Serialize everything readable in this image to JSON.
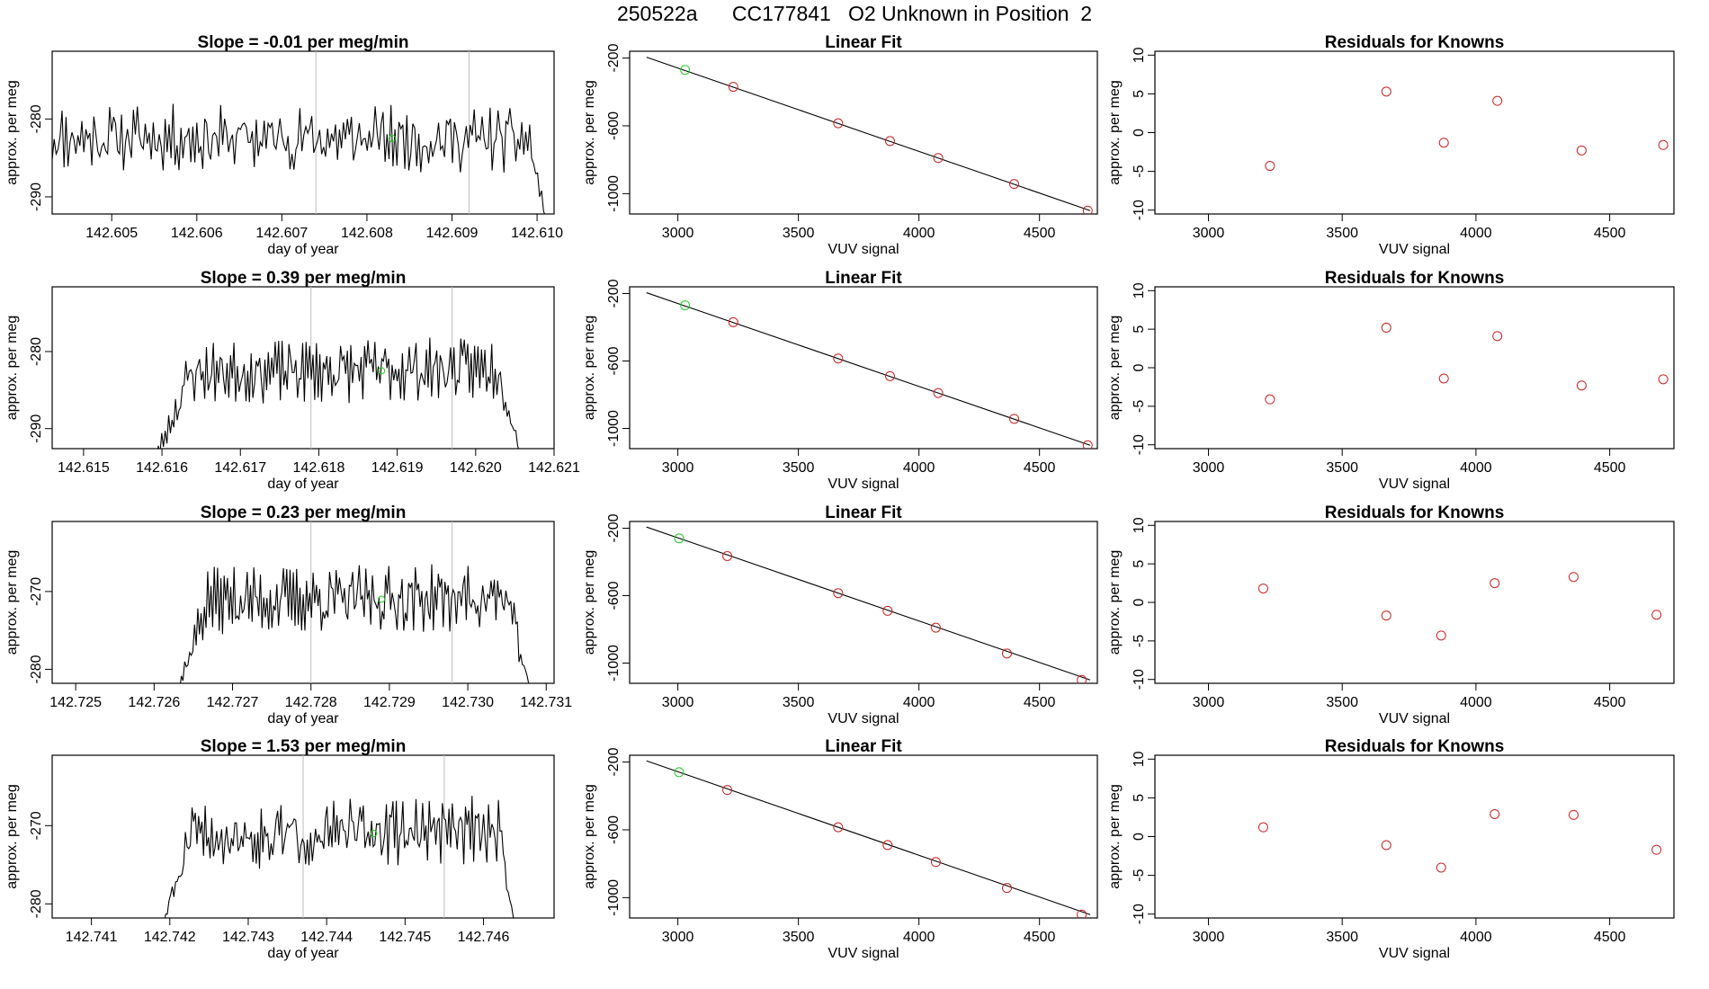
{
  "title": "250522a      CC177841   O2 Unknown in Position  2",
  "colors": {
    "known": "#cc2222",
    "unknown": "#22cc22",
    "trace": "#000000",
    "marker": "#bdbdbd"
  },
  "chart_data": [
    {
      "type": "line",
      "title": "Slope =  -0.01  per meg/min",
      "xlabel": "day of year",
      "ylabel": "approx. per meg",
      "xlim": [
        142.6043,
        142.6102
      ],
      "ylim": [
        -292.2,
        -271.3
      ],
      "xticks": [
        142.605,
        142.606,
        142.607,
        142.608,
        142.609,
        142.61
      ],
      "xtick_labels": [
        "142.605",
        "142.606",
        "142.607",
        "142.608",
        "142.609",
        "142.610"
      ],
      "yticks": [
        -280,
        -290
      ],
      "ytick_labels": [
        "-280",
        "-290"
      ],
      "markers_x": [
        142.6074,
        142.6092
      ],
      "unknown_point": [
        142.6083,
        -282.5
      ],
      "trace": {
        "start": 142.6043,
        "end": 142.6101,
        "n": 250,
        "base": -282.5,
        "amp": 3.2,
        "drift": -0.3,
        "ramp_in": 0.0,
        "ramp_out": 0.0002,
        "drop": -10.0,
        "seed": 11
      }
    },
    {
      "type": "line",
      "title": "Slope =  0.39  per meg/min",
      "xlabel": "day of year",
      "ylabel": "approx. per meg",
      "xlim": [
        142.6146,
        142.621
      ],
      "ylim": [
        -292.6,
        -271.6
      ],
      "xticks": [
        142.615,
        142.616,
        142.617,
        142.618,
        142.619,
        142.62,
        142.621
      ],
      "xtick_labels": [
        "142.615",
        "142.616",
        "142.617",
        "142.618",
        "142.619",
        "142.620",
        "142.621"
      ],
      "yticks": [
        -280,
        -290
      ],
      "ytick_labels": [
        "-280",
        "-290"
      ],
      "markers_x": [
        142.6179,
        142.6197
      ],
      "unknown_point": [
        142.6188,
        -282.5
      ],
      "trace": {
        "start": 142.6158,
        "end": 142.6206,
        "n": 220,
        "base": -282.5,
        "amp": 3.0,
        "drift": 0.6,
        "ramp_in": 0.0006,
        "ramp_out": 0.0003,
        "drop": -12.0,
        "seed": 23
      }
    },
    {
      "type": "line",
      "title": "Slope =  0.23  per meg/min",
      "xlabel": "day of year",
      "ylabel": "approx. per meg",
      "xlim": [
        142.7247,
        142.7311
      ],
      "ylim": [
        -281.8,
        -261.0
      ],
      "xticks": [
        142.725,
        142.726,
        142.727,
        142.728,
        142.729,
        142.73,
        142.731
      ],
      "xtick_labels": [
        "142.725",
        "142.726",
        "142.727",
        "142.728",
        "142.729",
        "142.730",
        "142.731"
      ],
      "yticks": [
        -270,
        -280
      ],
      "ytick_labels": [
        "-270",
        "-280"
      ],
      "markers_x": [
        142.728,
        142.7298
      ],
      "unknown_point": [
        142.7289,
        -271.0
      ],
      "trace": {
        "start": 142.7262,
        "end": 142.7308,
        "n": 220,
        "base": -271.0,
        "amp": 3.2,
        "drift": 0.5,
        "ramp_in": 0.0005,
        "ramp_out": 0.0003,
        "drop": -12.0,
        "seed": 37
      }
    },
    {
      "type": "line",
      "title": "Slope =  1.53  per meg/min",
      "xlabel": "day of year",
      "ylabel": "approx. per meg",
      "xlim": [
        142.7405,
        142.7469
      ],
      "ylim": [
        -281.8,
        -261.0
      ],
      "xticks": [
        142.741,
        142.742,
        142.743,
        142.744,
        142.745,
        142.746
      ],
      "xtick_labels": [
        "142.741",
        "142.742",
        "142.743",
        "142.744",
        "142.745",
        "142.746"
      ],
      "yticks": [
        -270,
        -280
      ],
      "ytick_labels": [
        "-270",
        "-280"
      ],
      "markers_x": [
        142.7437,
        142.7455
      ],
      "unknown_point": [
        142.7446,
        -271.0
      ],
      "trace": {
        "start": 142.7418,
        "end": 142.7464,
        "n": 220,
        "base": -271.0,
        "amp": 3.2,
        "drift": 1.2,
        "ramp_in": 0.0005,
        "ramp_out": 0.0002,
        "drop": -12.0,
        "seed": 51
      }
    },
    {
      "type": "scatter",
      "title": "Linear Fit",
      "xlabel": "VUV signal",
      "ylabel": "approx. per meg",
      "xlim": [
        2800,
        4740
      ],
      "ylim": [
        -1120,
        -160
      ],
      "xticks": [
        3000,
        3500,
        4000,
        4500
      ],
      "xtick_labels": [
        "3000",
        "3500",
        "4000",
        "4500"
      ],
      "yticks": [
        -200,
        -600,
        -1000
      ],
      "ytick_labels": [
        "-200",
        "-600",
        "-1000"
      ],
      "fit_line": [
        [
          2870,
          -195
        ],
        [
          4710,
          -1100
        ]
      ],
      "unknown": [
        [
          3030,
          -270
        ]
      ],
      "knowns": [
        [
          3230,
          -370
        ],
        [
          3665,
          -585
        ],
        [
          3880,
          -690
        ],
        [
          4080,
          -790
        ],
        [
          4395,
          -943
        ],
        [
          4700,
          -1100
        ]
      ]
    },
    {
      "type": "scatter",
      "title": "Linear Fit",
      "xlabel": "VUV signal",
      "ylabel": "approx. per meg",
      "xlim": [
        2800,
        4740
      ],
      "ylim": [
        -1120,
        -160
      ],
      "xticks": [
        3000,
        3500,
        4000,
        4500
      ],
      "xtick_labels": [
        "3000",
        "3500",
        "4000",
        "4500"
      ],
      "yticks": [
        -200,
        -600,
        -1000
      ],
      "ytick_labels": [
        "-200",
        "-600",
        "-1000"
      ],
      "fit_line": [
        [
          2870,
          -195
        ],
        [
          4710,
          -1100
        ]
      ],
      "unknown": [
        [
          3030,
          -270
        ]
      ],
      "knowns": [
        [
          3230,
          -370
        ],
        [
          3665,
          -585
        ],
        [
          3880,
          -690
        ],
        [
          4080,
          -790
        ],
        [
          4395,
          -943
        ],
        [
          4700,
          -1100
        ]
      ]
    },
    {
      "type": "scatter",
      "title": "Linear Fit",
      "xlabel": "VUV signal",
      "ylabel": "approx. per meg",
      "xlim": [
        2800,
        4740
      ],
      "ylim": [
        -1120,
        -160
      ],
      "xticks": [
        3000,
        3500,
        4000,
        4500
      ],
      "xtick_labels": [
        "3000",
        "3500",
        "4000",
        "4500"
      ],
      "yticks": [
        -200,
        -600,
        -1000
      ],
      "ytick_labels": [
        "-200",
        "-600",
        "-1000"
      ],
      "fit_line": [
        [
          2870,
          -193
        ],
        [
          4710,
          -1100
        ]
      ],
      "unknown": [
        [
          3005,
          -260
        ]
      ],
      "knowns": [
        [
          3205,
          -365
        ],
        [
          3665,
          -585
        ],
        [
          3870,
          -690
        ],
        [
          4070,
          -790
        ],
        [
          4365,
          -943
        ],
        [
          4675,
          -1100
        ]
      ]
    },
    {
      "type": "scatter",
      "title": "Linear Fit",
      "xlabel": "VUV signal",
      "ylabel": "approx. per meg",
      "xlim": [
        2800,
        4740
      ],
      "ylim": [
        -1120,
        -160
      ],
      "xticks": [
        3000,
        3500,
        4000,
        4500
      ],
      "xtick_labels": [
        "3000",
        "3500",
        "4000",
        "4500"
      ],
      "yticks": [
        -200,
        -600,
        -1000
      ],
      "ytick_labels": [
        "-200",
        "-600",
        "-1000"
      ],
      "fit_line": [
        [
          2870,
          -193
        ],
        [
          4710,
          -1100
        ]
      ],
      "unknown": [
        [
          3005,
          -260
        ]
      ],
      "knowns": [
        [
          3205,
          -365
        ],
        [
          3665,
          -585
        ],
        [
          3870,
          -690
        ],
        [
          4070,
          -790
        ],
        [
          4365,
          -943
        ],
        [
          4675,
          -1100
        ]
      ]
    },
    {
      "type": "scatter",
      "title": "Residuals for Knowns",
      "xlabel": "VUV signal",
      "ylabel": "approx. per meg",
      "xlim": [
        2800,
        4740
      ],
      "ylim": [
        -10.5,
        10.5
      ],
      "xticks": [
        3000,
        3500,
        4000,
        4500
      ],
      "xtick_labels": [
        "3000",
        "3500",
        "4000",
        "4500"
      ],
      "yticks": [
        10,
        5,
        0,
        -5,
        -10
      ],
      "ytick_labels": [
        "10",
        "5",
        "0",
        "-5",
        "-10"
      ],
      "knowns": [
        [
          3230,
          -4.3
        ],
        [
          3665,
          5.3
        ],
        [
          3880,
          -1.3
        ],
        [
          4080,
          4.1
        ],
        [
          4395,
          -2.3
        ],
        [
          4700,
          -1.6
        ]
      ]
    },
    {
      "type": "scatter",
      "title": "Residuals for Knowns",
      "xlabel": "VUV signal",
      "ylabel": "approx. per meg",
      "xlim": [
        2800,
        4740
      ],
      "ylim": [
        -10.5,
        10.5
      ],
      "xticks": [
        3000,
        3500,
        4000,
        4500
      ],
      "xtick_labels": [
        "3000",
        "3500",
        "4000",
        "4500"
      ],
      "yticks": [
        10,
        5,
        0,
        -5,
        -10
      ],
      "ytick_labels": [
        "10",
        "5",
        "0",
        "-5",
        "-10"
      ],
      "knowns": [
        [
          3230,
          -4.1
        ],
        [
          3665,
          5.2
        ],
        [
          3880,
          -1.4
        ],
        [
          4080,
          4.1
        ],
        [
          4395,
          -2.3
        ],
        [
          4700,
          -1.5
        ]
      ]
    },
    {
      "type": "scatter",
      "title": "Residuals for Knowns",
      "xlabel": "VUV signal",
      "ylabel": "approx. per meg",
      "xlim": [
        2800,
        4740
      ],
      "ylim": [
        -10.5,
        10.5
      ],
      "xticks": [
        3000,
        3500,
        4000,
        4500
      ],
      "xtick_labels": [
        "3000",
        "3500",
        "4000",
        "4500"
      ],
      "yticks": [
        10,
        5,
        0,
        -5,
        -10
      ],
      "ytick_labels": [
        "10",
        "5",
        "0",
        "-5",
        "-10"
      ],
      "knowns": [
        [
          3205,
          1.8
        ],
        [
          3665,
          -1.7
        ],
        [
          3870,
          -4.3
        ],
        [
          4070,
          2.5
        ],
        [
          4365,
          3.3
        ],
        [
          4675,
          -1.6
        ]
      ]
    },
    {
      "type": "scatter",
      "title": "Residuals for Knowns",
      "xlabel": "VUV signal",
      "ylabel": "approx. per meg",
      "xlim": [
        2800,
        4740
      ],
      "ylim": [
        -10.5,
        10.5
      ],
      "xticks": [
        3000,
        3500,
        4000,
        4500
      ],
      "xtick_labels": [
        "3000",
        "3500",
        "4000",
        "4500"
      ],
      "yticks": [
        10,
        5,
        0,
        -5,
        -10
      ],
      "ytick_labels": [
        "10",
        "5",
        "0",
        "-5",
        "-10"
      ],
      "knowns": [
        [
          3205,
          1.2
        ],
        [
          3665,
          -1.1
        ],
        [
          3870,
          -4.0
        ],
        [
          4070,
          2.9
        ],
        [
          4365,
          2.8
        ],
        [
          4675,
          -1.7
        ]
      ]
    }
  ]
}
